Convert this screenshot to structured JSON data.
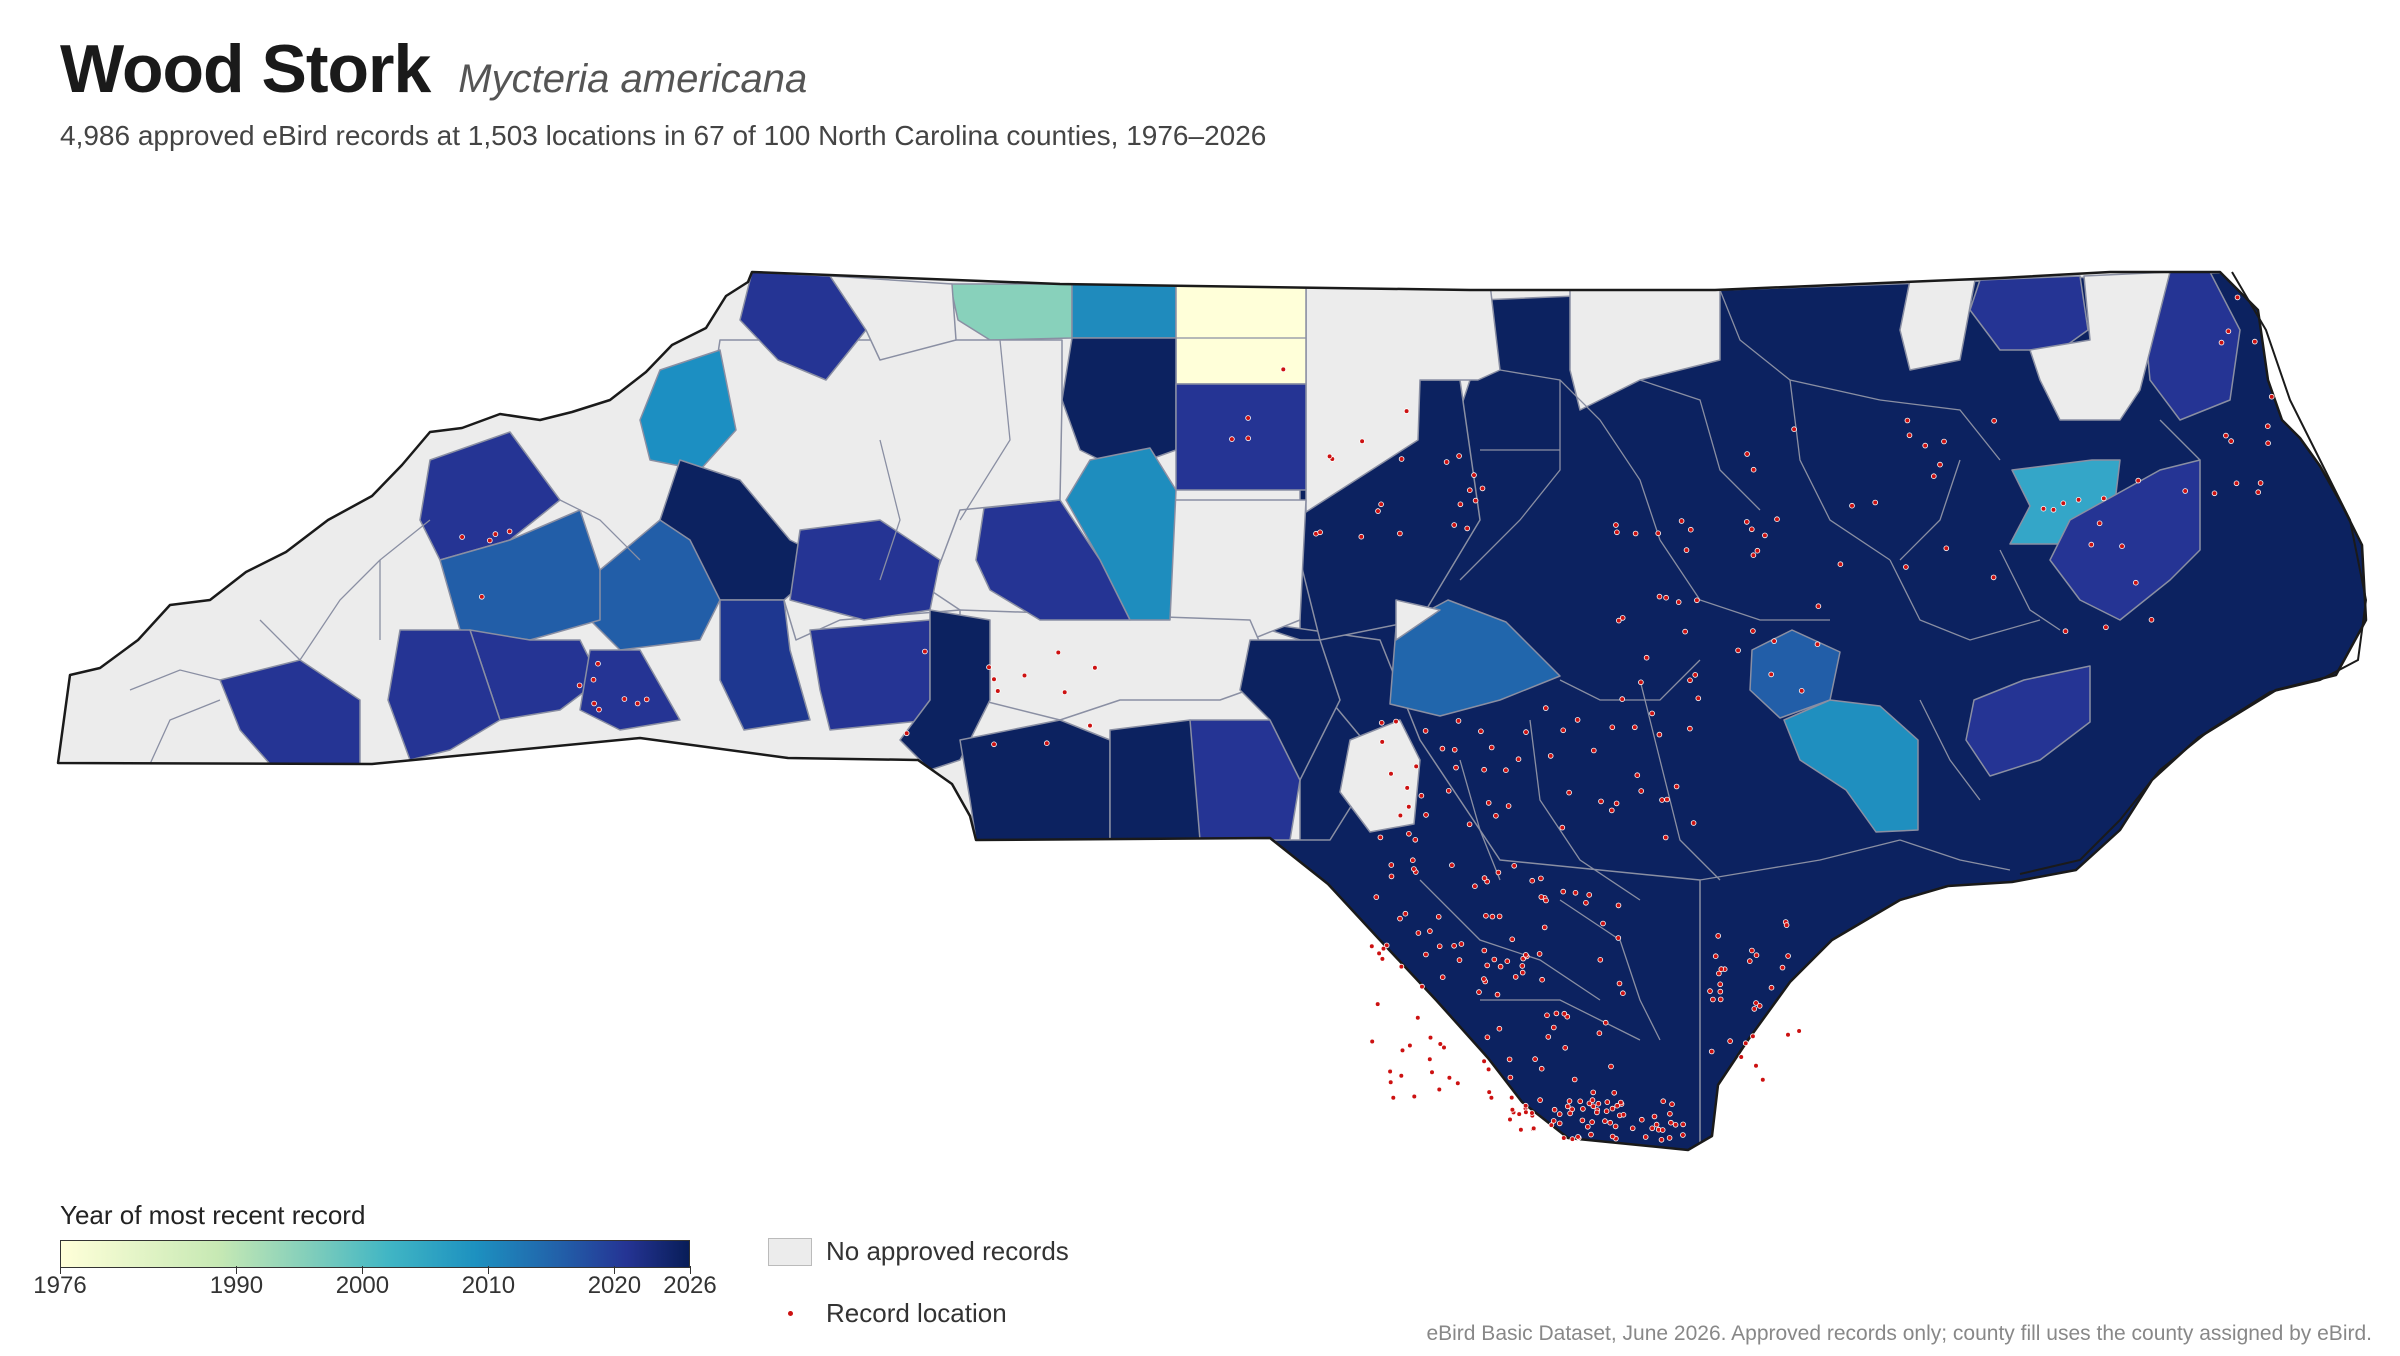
{
  "header": {
    "title": "Wood Stork",
    "scientific_name": "Mycteria americana",
    "subtitle": "4,986 approved eBird records at 1,503 locations in 67 of 100 North Carolina counties, 1976–2026"
  },
  "legend": {
    "colorbar_title": "Year of most recent record",
    "year_min": 1976,
    "year_max": 2026,
    "ticks": [
      "1976",
      "1990",
      "2000",
      "2010",
      "2020",
      "2026"
    ],
    "no_records_label": "No approved records",
    "record_label": "Record location",
    "colors": {
      "no_records": "#ececec",
      "record_dot": "#cc1111",
      "state_outline": "#1a1a1a",
      "county_border": "#8a8fa3"
    }
  },
  "source_note": "eBird Basic Dataset, June 2026. Approved records only; county fill uses the county assigned by eBird.",
  "map_data": {
    "state": "North Carolina",
    "region_counts": {
      "counties_total": 100,
      "counties_with_records": 67
    },
    "regions_by_latest_year": [
      {
        "area": "far west mountains",
        "latest_year": null
      },
      {
        "area": "Ashe / Alleghany",
        "latest_year": 2022
      },
      {
        "area": "Surry",
        "latest_year": 1995
      },
      {
        "area": "Stokes",
        "latest_year": 2007
      },
      {
        "area": "Rockingham",
        "latest_year": 1976
      },
      {
        "area": "Caswell / Person",
        "latest_year": null
      },
      {
        "area": "Guilford",
        "latest_year": 2021
      },
      {
        "area": "Forsyth",
        "latest_year": 2024
      },
      {
        "area": "Davidson / Randolph",
        "latest_year": 2007
      },
      {
        "area": "Wilkes",
        "latest_year": 1986
      },
      {
        "area": "Caldwell",
        "latest_year": 2007
      },
      {
        "area": "Alexander",
        "latest_year": 2007
      },
      {
        "area": "Buncombe",
        "latest_year": 2015
      },
      {
        "area": "Wake / Johnston",
        "latest_year": 2008
      },
      {
        "area": "Wayne / Duplin",
        "latest_year": 2006
      },
      {
        "area": "Hyde",
        "latest_year": 2003
      },
      {
        "area": "Coastal plain",
        "latest_year": 2026
      }
    ]
  }
}
